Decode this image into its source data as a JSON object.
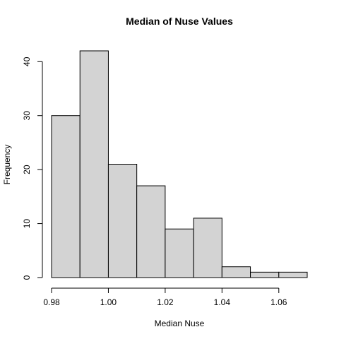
{
  "chart_data": {
    "type": "bar",
    "title": "Median of Nuse Values",
    "xlabel": "Median Nuse",
    "ylabel": "Frequency",
    "bins": [
      {
        "x0": 0.98,
        "x1": 0.99,
        "count": 30
      },
      {
        "x0": 0.99,
        "x1": 1.0,
        "count": 42
      },
      {
        "x0": 1.0,
        "x1": 1.01,
        "count": 21
      },
      {
        "x0": 1.01,
        "x1": 1.02,
        "count": 17
      },
      {
        "x0": 1.02,
        "x1": 1.03,
        "count": 9
      },
      {
        "x0": 1.03,
        "x1": 1.04,
        "count": 11
      },
      {
        "x0": 1.04,
        "x1": 1.05,
        "count": 2
      },
      {
        "x0": 1.05,
        "x1": 1.06,
        "count": 1
      },
      {
        "x0": 1.06,
        "x1": 1.07,
        "count": 1
      }
    ],
    "x_ticks": [
      0.98,
      1.0,
      1.02,
      1.04,
      1.06
    ],
    "x_tick_labels": [
      "0.98",
      "1.00",
      "1.02",
      "1.04",
      "1.06"
    ],
    "y_ticks": [
      0,
      10,
      20,
      30,
      40
    ],
    "y_tick_labels": [
      "0",
      "10",
      "20",
      "30",
      "40"
    ],
    "xlim": [
      0.98,
      1.07
    ],
    "ylim": [
      0,
      42
    ],
    "grid": false,
    "legend": "none",
    "colors": {
      "bar_fill": "#d3d3d3",
      "bar_stroke": "#000000",
      "background": "#ffffff"
    }
  }
}
